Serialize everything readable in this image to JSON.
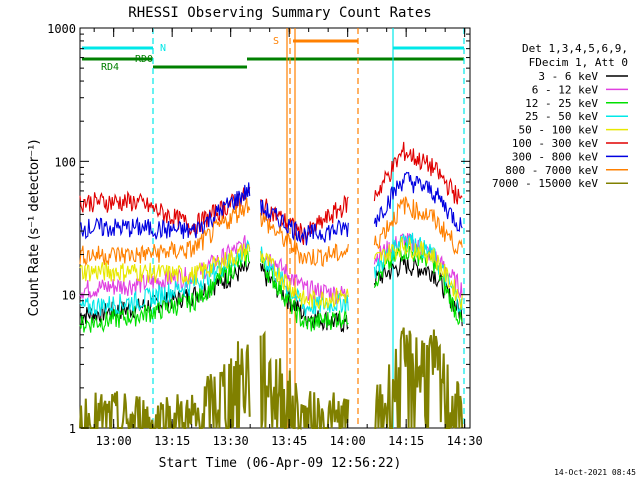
{
  "chart_data": {
    "type": "line",
    "title": "RHESSI Observing Summary Count Rates",
    "xlabel": "Start Time (06-Apr-09 12:56:22)",
    "ylabel": "Count Rate (s⁻¹ detector⁻¹)",
    "y_scale": "log",
    "ylim": [
      1,
      1000
    ],
    "xlim_minutes": [
      -5,
      95
    ],
    "x_tick_labels": [
      "13:00",
      "13:15",
      "13:30",
      "13:45",
      "14:00",
      "14:15",
      "14:30"
    ],
    "y_tick_labels": [
      "1",
      "10",
      "100",
      "1000"
    ],
    "grid": false,
    "legend_position": "right",
    "legend_header": [
      "Det 1,3,4,5,6,9,",
      "FDecim 1, Att 0"
    ],
    "footer_timestamp": "14-Oct-2021 08:45",
    "series": [
      {
        "name": "3 - 6 keV",
        "color": "#000000",
        "values": [
          7,
          8,
          10,
          16,
          15,
          7,
          6,
          13,
          17,
          15,
          7
        ]
      },
      {
        "name": "6 - 12 keV",
        "color": "#e040e0",
        "values": [
          11,
          12,
          14,
          25,
          22,
          11,
          10,
          19,
          26,
          20,
          11
        ]
      },
      {
        "name": "12 - 25 keV",
        "color": "#00e000",
        "values": [
          6,
          7,
          9,
          20,
          18,
          6,
          7,
          13,
          22,
          18,
          6
        ]
      },
      {
        "name": "25 - 50 keV",
        "color": "#00e8e8",
        "values": [
          8,
          9,
          12,
          22,
          20,
          8,
          9,
          15,
          28,
          20,
          8
        ]
      },
      {
        "name": "50 - 100 keV",
        "color": "#e8e800",
        "values": [
          15,
          15,
          14,
          22,
          20,
          9,
          10,
          18,
          24,
          20,
          9
        ]
      },
      {
        "name": "100 - 300 keV",
        "color": "#e00000",
        "values": [
          50,
          50,
          33,
          58,
          48,
          28,
          50,
          55,
          120,
          90,
          50
        ]
      },
      {
        "name": "300 - 800 keV",
        "color": "#0000e0",
        "values": [
          32,
          32,
          30,
          62,
          45,
          28,
          32,
          36,
          75,
          60,
          32
        ]
      },
      {
        "name": "800 - 7000 keV",
        "color": "#ff8000",
        "values": [
          20,
          20,
          22,
          50,
          38,
          19,
          21,
          24,
          48,
          38,
          21
        ]
      },
      {
        "name": "7000 - 15000 keV",
        "color": "#808000",
        "values": [
          1,
          1,
          1,
          3,
          3,
          1,
          1,
          1,
          3,
          3,
          1
        ]
      }
    ],
    "flag_bars": [
      {
        "label": "N",
        "color": "#00e8e8"
      },
      {
        "label": "S",
        "color": "#ff8000"
      },
      {
        "label": "RD0",
        "color": "#00e8e8"
      },
      {
        "label": "RD4",
        "color": "#008000"
      }
    ]
  }
}
